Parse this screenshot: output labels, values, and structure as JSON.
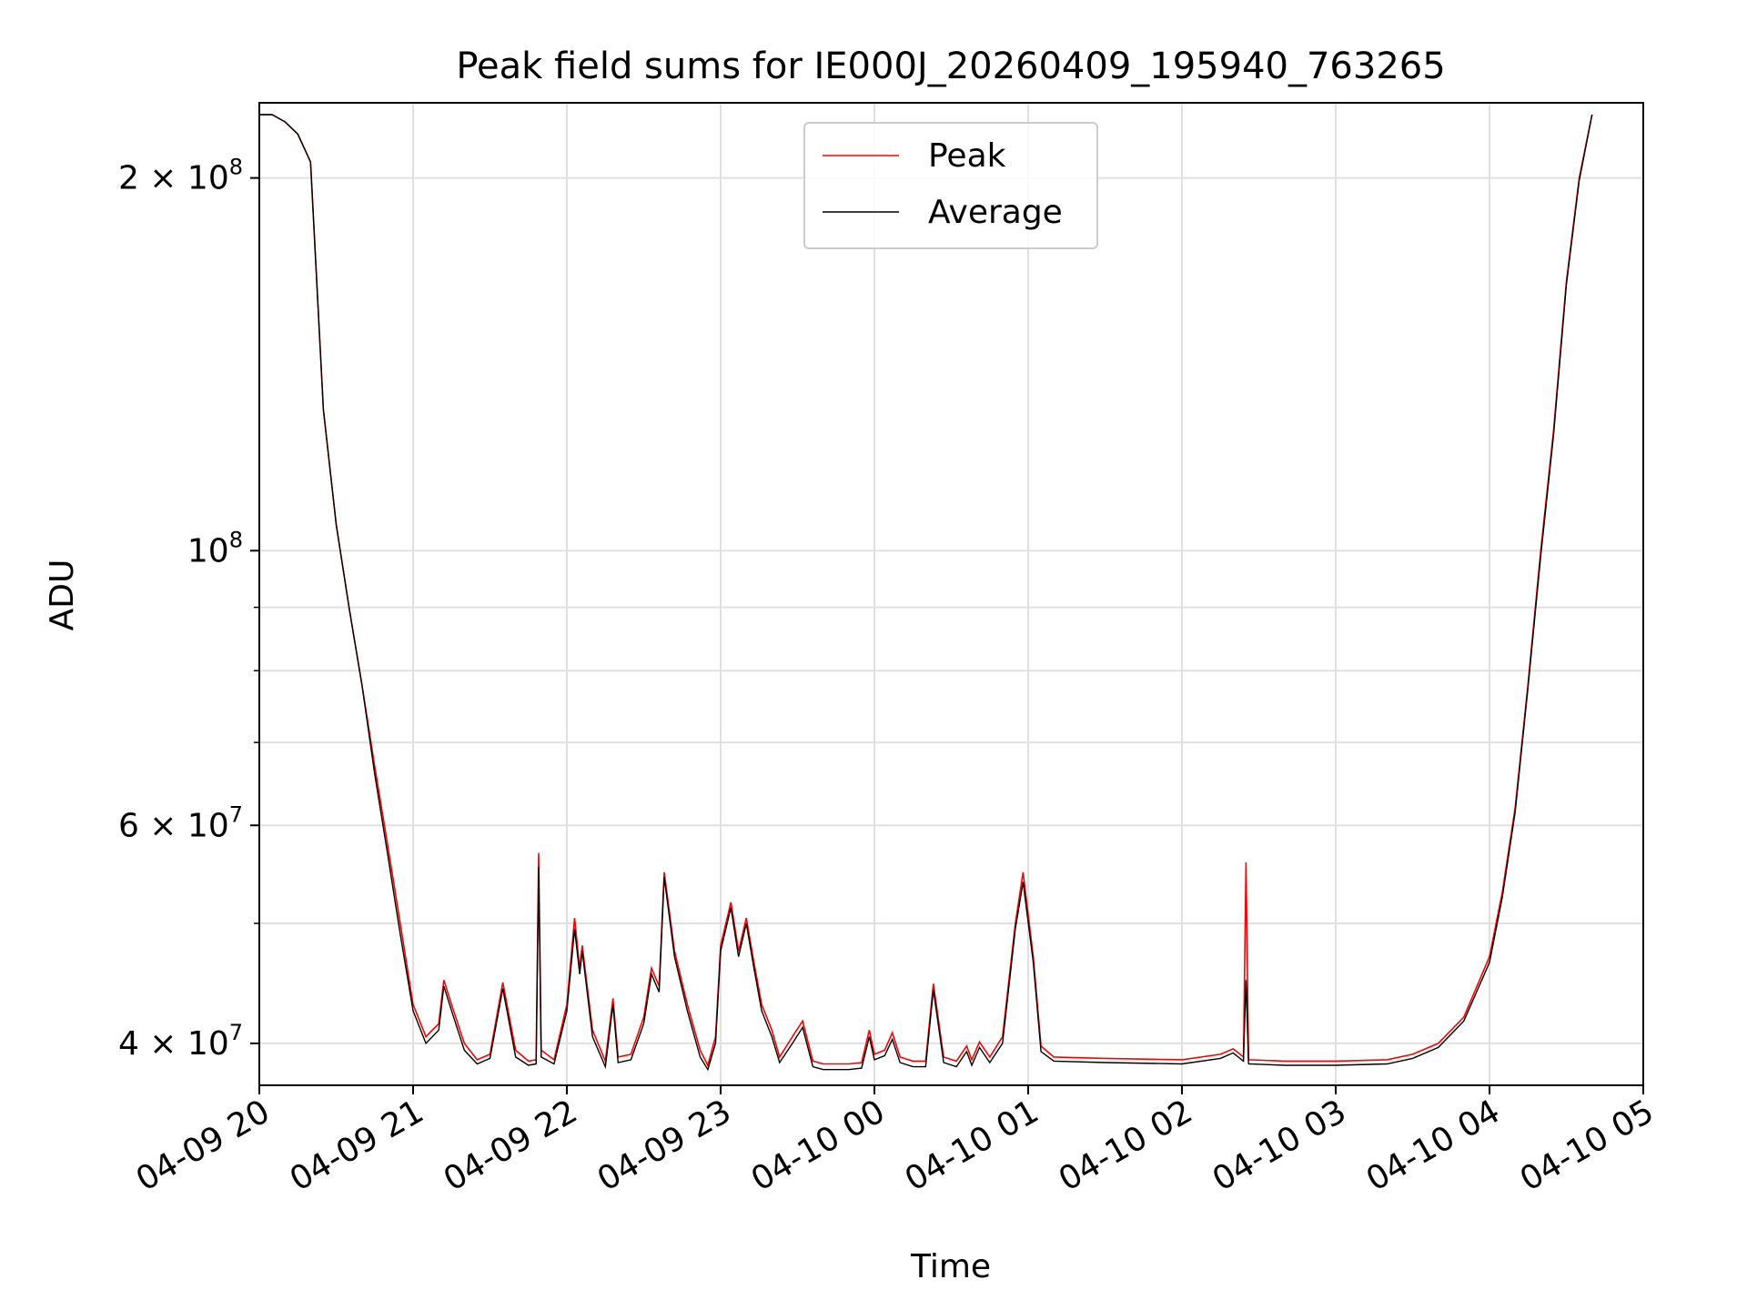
{
  "chart_data": {
    "type": "line",
    "title": "Peak field sums for IE000J_20260409_195940_763265",
    "xlabel": "Time",
    "ylabel": "ADU",
    "yscale": "log",
    "xlim": [
      "2026-04-09 20:00",
      "2026-04-10 05:00"
    ],
    "ylim": [
      37000000,
      230000000
    ],
    "grid": true,
    "legend": "top-center",
    "x_ticks": [
      {
        "t": "2026-04-09 20:00",
        "label": "04-09 20"
      },
      {
        "t": "2026-04-09 21:00",
        "label": "04-09 21"
      },
      {
        "t": "2026-04-09 22:00",
        "label": "04-09 22"
      },
      {
        "t": "2026-04-09 23:00",
        "label": "04-09 23"
      },
      {
        "t": "2026-04-10 00:00",
        "label": "04-10 00"
      },
      {
        "t": "2026-04-10 01:00",
        "label": "04-10 01"
      },
      {
        "t": "2026-04-10 02:00",
        "label": "04-10 02"
      },
      {
        "t": "2026-04-10 03:00",
        "label": "04-10 03"
      },
      {
        "t": "2026-04-10 04:00",
        "label": "04-10 04"
      },
      {
        "t": "2026-04-10 05:00",
        "label": "04-10 05"
      }
    ],
    "y_ticks_major": [
      {
        "v": 40000000,
        "base": "4 × 10",
        "exp": "7"
      },
      {
        "v": 60000000,
        "base": "6 × 10",
        "exp": "7"
      },
      {
        "v": 100000000,
        "base": "10",
        "exp": "8"
      },
      {
        "v": 200000000,
        "base": "2 × 10",
        "exp": "8"
      }
    ],
    "y_ticks_minor": [
      50000000,
      70000000,
      80000000,
      90000000
    ],
    "colors": {
      "peak": "#ff0000",
      "average": "#000000"
    },
    "series": [
      {
        "name": "Peak",
        "color": "#ff0000",
        "points": [
          [
            "2026-04-09 20:00",
            225000000
          ],
          [
            "2026-04-09 20:05",
            225000000
          ],
          [
            "2026-04-09 20:10",
            222000000
          ],
          [
            "2026-04-09 20:15",
            217000000
          ],
          [
            "2026-04-09 20:20",
            206000000
          ],
          [
            "2026-04-09 20:25",
            130000000
          ],
          [
            "2026-04-09 20:30",
            105000000
          ],
          [
            "2026-04-09 20:35",
            90000000
          ],
          [
            "2026-04-09 20:40",
            78000000
          ],
          [
            "2026-04-09 20:45",
            67000000
          ],
          [
            "2026-04-09 20:50",
            58000000
          ],
          [
            "2026-04-09 20:55",
            50000000
          ],
          [
            "2026-04-09 21:00",
            43000000
          ],
          [
            "2026-04-09 21:05",
            40500000
          ],
          [
            "2026-04-09 21:10",
            41500000
          ],
          [
            "2026-04-09 21:12",
            45000000
          ],
          [
            "2026-04-09 21:15",
            43000000
          ],
          [
            "2026-04-09 21:20",
            40000000
          ],
          [
            "2026-04-09 21:25",
            38800000
          ],
          [
            "2026-04-09 21:30",
            39200000
          ],
          [
            "2026-04-09 21:35",
            44800000
          ],
          [
            "2026-04-09 21:40",
            39500000
          ],
          [
            "2026-04-09 21:45",
            38700000
          ],
          [
            "2026-04-09 21:48",
            38800000
          ],
          [
            "2026-04-09 21:49",
            57000000
          ],
          [
            "2026-04-09 21:50",
            39500000
          ],
          [
            "2026-04-09 21:55",
            38800000
          ],
          [
            "2026-04-09 22:00",
            43000000
          ],
          [
            "2026-04-09 22:03",
            50500000
          ],
          [
            "2026-04-09 22:05",
            46000000
          ],
          [
            "2026-04-09 22:06",
            48000000
          ],
          [
            "2026-04-09 22:10",
            41000000
          ],
          [
            "2026-04-09 22:15",
            38700000
          ],
          [
            "2026-04-09 22:18",
            43500000
          ],
          [
            "2026-04-09 22:20",
            39000000
          ],
          [
            "2026-04-09 22:25",
            39200000
          ],
          [
            "2026-04-09 22:30",
            42000000
          ],
          [
            "2026-04-09 22:33",
            46000000
          ],
          [
            "2026-04-09 22:36",
            44500000
          ],
          [
            "2026-04-09 22:38",
            55000000
          ],
          [
            "2026-04-09 22:42",
            47500000
          ],
          [
            "2026-04-09 22:47",
            43000000
          ],
          [
            "2026-04-09 22:52",
            39500000
          ],
          [
            "2026-04-09 22:55",
            38400000
          ],
          [
            "2026-04-09 22:58",
            40500000
          ],
          [
            "2026-04-09 23:00",
            48000000
          ],
          [
            "2026-04-09 23:04",
            52000000
          ],
          [
            "2026-04-09 23:07",
            47500000
          ],
          [
            "2026-04-09 23:10",
            50500000
          ],
          [
            "2026-04-09 23:13",
            46500000
          ],
          [
            "2026-04-09 23:16",
            43000000
          ],
          [
            "2026-04-09 23:20",
            41000000
          ],
          [
            "2026-04-09 23:23",
            39000000
          ],
          [
            "2026-04-09 23:28",
            40500000
          ],
          [
            "2026-04-09 23:32",
            41700000
          ],
          [
            "2026-04-09 23:36",
            38700000
          ],
          [
            "2026-04-09 23:40",
            38500000
          ],
          [
            "2026-04-09 23:50",
            38500000
          ],
          [
            "2026-04-09 23:55",
            38600000
          ],
          [
            "2026-04-09 23:58",
            41000000
          ],
          [
            "2026-04-10 00:00",
            39200000
          ],
          [
            "2026-04-10 00:04",
            39500000
          ],
          [
            "2026-04-10 00:07",
            40800000
          ],
          [
            "2026-04-10 00:10",
            39000000
          ],
          [
            "2026-04-10 00:15",
            38700000
          ],
          [
            "2026-04-10 00:20",
            38700000
          ],
          [
            "2026-04-10 00:23",
            44700000
          ],
          [
            "2026-04-10 00:27",
            39000000
          ],
          [
            "2026-04-10 00:32",
            38700000
          ],
          [
            "2026-04-10 00:36",
            39800000
          ],
          [
            "2026-04-10 00:38",
            38800000
          ],
          [
            "2026-04-10 00:41",
            40100000
          ],
          [
            "2026-04-10 00:45",
            39000000
          ],
          [
            "2026-04-10 00:50",
            40500000
          ],
          [
            "2026-04-10 00:55",
            50000000
          ],
          [
            "2026-04-10 00:58",
            55000000
          ],
          [
            "2026-04-10 01:02",
            47000000
          ],
          [
            "2026-04-10 01:05",
            39800000
          ],
          [
            "2026-04-10 01:10",
            39000000
          ],
          [
            "2026-04-10 01:30",
            38900000
          ],
          [
            "2026-04-10 02:00",
            38800000
          ],
          [
            "2026-04-10 02:15",
            39200000
          ],
          [
            "2026-04-10 02:20",
            39600000
          ],
          [
            "2026-04-10 02:24",
            39000000
          ],
          [
            "2026-04-10 02:25",
            56000000
          ],
          [
            "2026-04-10 02:26",
            38800000
          ],
          [
            "2026-04-10 02:40",
            38700000
          ],
          [
            "2026-04-10 03:00",
            38700000
          ],
          [
            "2026-04-10 03:20",
            38800000
          ],
          [
            "2026-04-10 03:30",
            39200000
          ],
          [
            "2026-04-10 03:40",
            40000000
          ],
          [
            "2026-04-10 03:50",
            42000000
          ],
          [
            "2026-04-10 04:00",
            47000000
          ],
          [
            "2026-04-10 04:05",
            53000000
          ],
          [
            "2026-04-10 04:10",
            62000000
          ],
          [
            "2026-04-10 04:15",
            78000000
          ],
          [
            "2026-04-10 04:20",
            100000000
          ],
          [
            "2026-04-10 04:25",
            125000000
          ],
          [
            "2026-04-10 04:30",
            165000000
          ],
          [
            "2026-04-10 04:35",
            200000000
          ],
          [
            "2026-04-10 04:40",
            225000000
          ]
        ]
      },
      {
        "name": "Average",
        "color": "#000000",
        "points": [
          [
            "2026-04-09 20:00",
            225000000
          ],
          [
            "2026-04-09 20:05",
            225000000
          ],
          [
            "2026-04-09 20:10",
            222000000
          ],
          [
            "2026-04-09 20:15",
            217000000
          ],
          [
            "2026-04-09 20:20",
            206000000
          ],
          [
            "2026-04-09 20:25",
            130000000
          ],
          [
            "2026-04-09 20:30",
            105000000
          ],
          [
            "2026-04-09 20:35",
            90000000
          ],
          [
            "2026-04-09 20:40",
            78000000
          ],
          [
            "2026-04-09 20:45",
            66000000
          ],
          [
            "2026-04-09 20:50",
            57000000
          ],
          [
            "2026-04-09 20:55",
            49000000
          ],
          [
            "2026-04-09 21:00",
            42500000
          ],
          [
            "2026-04-09 21:05",
            40000000
          ],
          [
            "2026-04-09 21:10",
            41000000
          ],
          [
            "2026-04-09 21:12",
            44500000
          ],
          [
            "2026-04-09 21:15",
            42500000
          ],
          [
            "2026-04-09 21:20",
            39500000
          ],
          [
            "2026-04-09 21:25",
            38500000
          ],
          [
            "2026-04-09 21:30",
            38900000
          ],
          [
            "2026-04-09 21:35",
            44300000
          ],
          [
            "2026-04-09 21:40",
            39000000
          ],
          [
            "2026-04-09 21:45",
            38400000
          ],
          [
            "2026-04-09 21:48",
            38500000
          ],
          [
            "2026-04-09 21:49",
            55500000
          ],
          [
            "2026-04-09 21:50",
            39000000
          ],
          [
            "2026-04-09 21:55",
            38500000
          ],
          [
            "2026-04-09 22:00",
            42500000
          ],
          [
            "2026-04-09 22:03",
            49500000
          ],
          [
            "2026-04-09 22:05",
            45500000
          ],
          [
            "2026-04-09 22:06",
            47500000
          ],
          [
            "2026-04-09 22:10",
            40500000
          ],
          [
            "2026-04-09 22:15",
            38300000
          ],
          [
            "2026-04-09 22:18",
            43000000
          ],
          [
            "2026-04-09 22:20",
            38600000
          ],
          [
            "2026-04-09 22:25",
            38800000
          ],
          [
            "2026-04-09 22:30",
            41500000
          ],
          [
            "2026-04-09 22:33",
            45500000
          ],
          [
            "2026-04-09 22:36",
            44000000
          ],
          [
            "2026-04-09 22:38",
            54500000
          ],
          [
            "2026-04-09 22:42",
            47000000
          ],
          [
            "2026-04-09 22:47",
            42500000
          ],
          [
            "2026-04-09 22:52",
            39000000
          ],
          [
            "2026-04-09 22:55",
            38100000
          ],
          [
            "2026-04-09 22:58",
            40000000
          ],
          [
            "2026-04-09 23:00",
            47500000
          ],
          [
            "2026-04-09 23:04",
            51500000
          ],
          [
            "2026-04-09 23:07",
            47000000
          ],
          [
            "2026-04-09 23:10",
            50000000
          ],
          [
            "2026-04-09 23:13",
            46000000
          ],
          [
            "2026-04-09 23:16",
            42500000
          ],
          [
            "2026-04-09 23:20",
            40500000
          ],
          [
            "2026-04-09 23:23",
            38600000
          ],
          [
            "2026-04-09 23:28",
            40000000
          ],
          [
            "2026-04-09 23:32",
            41200000
          ],
          [
            "2026-04-09 23:36",
            38300000
          ],
          [
            "2026-04-09 23:40",
            38100000
          ],
          [
            "2026-04-09 23:50",
            38100000
          ],
          [
            "2026-04-09 23:55",
            38200000
          ],
          [
            "2026-04-09 23:58",
            40500000
          ],
          [
            "2026-04-10 00:00",
            38800000
          ],
          [
            "2026-04-10 00:04",
            39100000
          ],
          [
            "2026-04-10 00:07",
            40300000
          ],
          [
            "2026-04-10 00:10",
            38600000
          ],
          [
            "2026-04-10 00:15",
            38300000
          ],
          [
            "2026-04-10 00:20",
            38300000
          ],
          [
            "2026-04-10 00:23",
            44200000
          ],
          [
            "2026-04-10 00:27",
            38600000
          ],
          [
            "2026-04-10 00:32",
            38300000
          ],
          [
            "2026-04-10 00:36",
            39400000
          ],
          [
            "2026-04-10 00:38",
            38400000
          ],
          [
            "2026-04-10 00:41",
            39700000
          ],
          [
            "2026-04-10 00:45",
            38600000
          ],
          [
            "2026-04-10 00:50",
            40000000
          ],
          [
            "2026-04-10 00:55",
            49500000
          ],
          [
            "2026-04-10 00:58",
            54000000
          ],
          [
            "2026-04-10 01:02",
            46500000
          ],
          [
            "2026-04-10 01:05",
            39400000
          ],
          [
            "2026-04-10 01:10",
            38700000
          ],
          [
            "2026-04-10 01:30",
            38600000
          ],
          [
            "2026-04-10 02:00",
            38500000
          ],
          [
            "2026-04-10 02:15",
            38900000
          ],
          [
            "2026-04-10 02:20",
            39300000
          ],
          [
            "2026-04-10 02:24",
            38700000
          ],
          [
            "2026-04-10 02:25",
            45000000
          ],
          [
            "2026-04-10 02:26",
            38500000
          ],
          [
            "2026-04-10 02:40",
            38400000
          ],
          [
            "2026-04-10 03:00",
            38400000
          ],
          [
            "2026-04-10 03:20",
            38500000
          ],
          [
            "2026-04-10 03:30",
            38900000
          ],
          [
            "2026-04-10 03:40",
            39700000
          ],
          [
            "2026-04-10 03:50",
            41700000
          ],
          [
            "2026-04-10 04:00",
            46500000
          ],
          [
            "2026-04-10 04:05",
            52500000
          ],
          [
            "2026-04-10 04:10",
            61500000
          ],
          [
            "2026-04-10 04:15",
            77500000
          ],
          [
            "2026-04-10 04:20",
            99000000
          ],
          [
            "2026-04-10 04:25",
            124000000
          ],
          [
            "2026-04-10 04:30",
            164000000
          ],
          [
            "2026-04-10 04:35",
            199000000
          ],
          [
            "2026-04-10 04:40",
            225000000
          ]
        ]
      }
    ]
  }
}
